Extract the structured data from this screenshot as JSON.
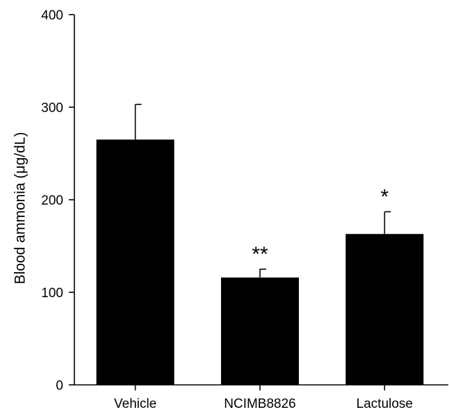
{
  "chart_data": {
    "type": "bar",
    "categories": [
      "Vehicle",
      "NCIMB8826",
      "Lactulose"
    ],
    "values": [
      265,
      116,
      163
    ],
    "error_upper": [
      303,
      125,
      187
    ],
    "significance": [
      "",
      "**",
      "*"
    ],
    "title": "",
    "xlabel": "",
    "ylabel": "Blood ammonia (μg/dL)",
    "ylim": [
      0,
      400
    ],
    "yticks": [
      0,
      100,
      200,
      300,
      400
    ],
    "grid": false,
    "legend": "none",
    "bar_color": "#000000"
  }
}
